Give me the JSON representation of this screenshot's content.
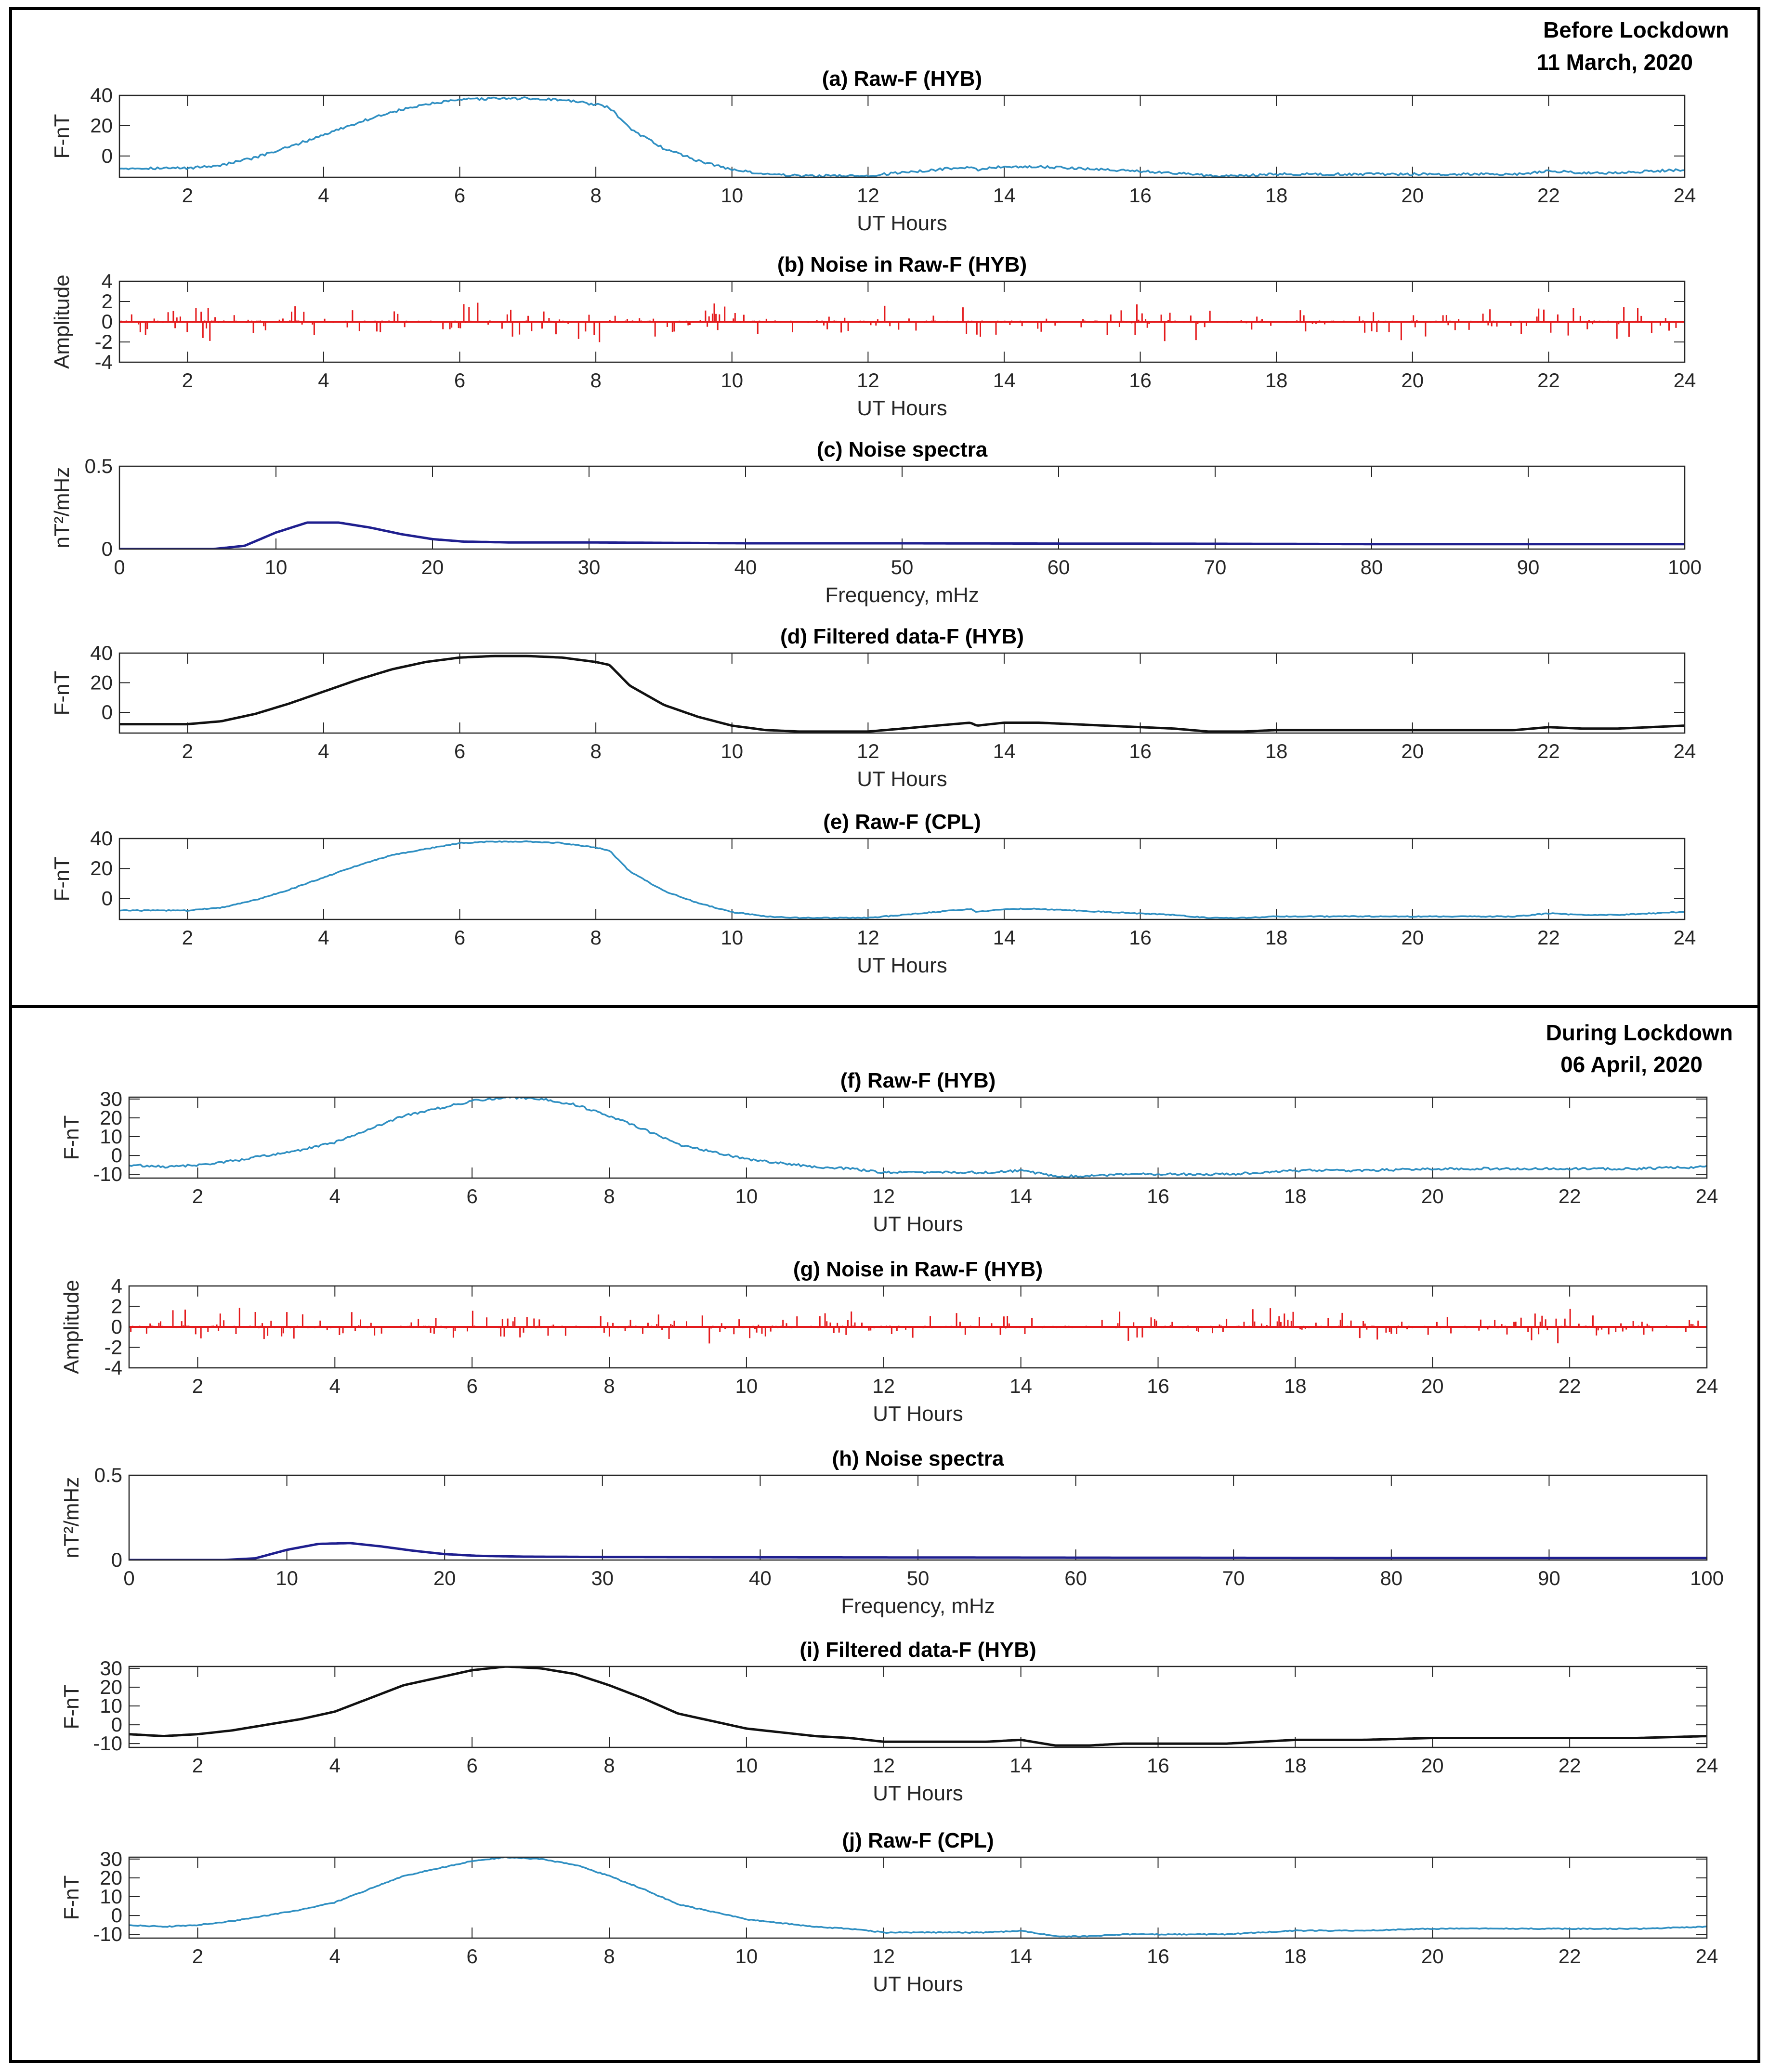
{
  "sections": [
    {
      "heading": "Before Lockdown",
      "date": "11 March, 2020"
    },
    {
      "heading": "During Lockdown",
      "date": "06 April, 2020"
    }
  ],
  "colors": {
    "raw": "#2f8fc2",
    "noise": "#e41a1c",
    "spectra": "#1f1f8f",
    "filtered": "#111111",
    "grid": "#262626"
  },
  "chart_data": [
    {
      "id": "a",
      "type": "line",
      "title": "(a) Raw-F (HYB)",
      "xlabel": "UT Hours",
      "ylabel": "F-nT",
      "xlim": [
        1,
        24
      ],
      "ylim": [
        -14,
        40
      ],
      "xticks": [
        2,
        4,
        6,
        8,
        10,
        12,
        14,
        16,
        18,
        20,
        22,
        24
      ],
      "yticks": [
        0,
        20,
        40
      ],
      "color_key": "raw",
      "noise": 0.8,
      "x": [
        1,
        2,
        2.5,
        3,
        3.5,
        4,
        4.5,
        5,
        5.5,
        6,
        6.5,
        7,
        7.5,
        8,
        8.2,
        8.5,
        9,
        9.5,
        10,
        10.5,
        11,
        11.5,
        12,
        12.5,
        13,
        13.5,
        13.6,
        13.8,
        14,
        14.5,
        15,
        15.5,
        16,
        16.5,
        17,
        17.5,
        18,
        18.5,
        19,
        19.5,
        20,
        20.5,
        21,
        21.5,
        22,
        22.5,
        23,
        23.5,
        24
      ],
      "values": [
        -8,
        -8,
        -6,
        -1,
        6,
        14,
        22,
        29,
        34,
        37,
        38,
        38,
        37,
        34,
        32,
        18,
        5,
        -3,
        -9,
        -12,
        -13,
        -13,
        -13,
        -11,
        -9,
        -7,
        -9,
        -8,
        -7,
        -7,
        -8,
        -9,
        -10,
        -11,
        -13,
        -13,
        -12,
        -12,
        -12,
        -12,
        -12,
        -12,
        -12,
        -12,
        -10,
        -11,
        -11,
        -10,
        -9
      ]
    },
    {
      "id": "b",
      "type": "noise",
      "title": "(b) Noise in Raw-F (HYB)",
      "xlabel": "UT Hours",
      "ylabel": "Amplitude",
      "xlim": [
        1,
        24
      ],
      "ylim": [
        -4,
        4
      ],
      "xticks": [
        2,
        4,
        6,
        8,
        10,
        12,
        14,
        16,
        18,
        20,
        22,
        24
      ],
      "yticks": [
        -4,
        -2,
        0,
        2,
        4
      ],
      "color_key": "noise",
      "amplitude": 2.2,
      "seed": 7
    },
    {
      "id": "c",
      "type": "line",
      "title": "(c) Noise spectra",
      "xlabel": "Frequency, mHz",
      "ylabel": "nT²/mHz",
      "xlim": [
        0,
        100
      ],
      "ylim": [
        0,
        0.5
      ],
      "xticks": [
        0,
        10,
        20,
        30,
        40,
        50,
        60,
        70,
        80,
        90,
        100
      ],
      "yticks": [
        0,
        0.5
      ],
      "color_key": "spectra",
      "noise": 0,
      "stroke": 5,
      "x": [
        0,
        6,
        8,
        10,
        12,
        14,
        16,
        18,
        20,
        22,
        25,
        30,
        40,
        50,
        60,
        70,
        80,
        90,
        100
      ],
      "values": [
        0,
        0,
        0.02,
        0.1,
        0.16,
        0.16,
        0.13,
        0.09,
        0.06,
        0.045,
        0.04,
        0.04,
        0.035,
        0.035,
        0.033,
        0.032,
        0.03,
        0.03,
        0.03
      ]
    },
    {
      "id": "d",
      "type": "line",
      "title": "(d) Filtered data-F (HYB)",
      "xlabel": "UT Hours",
      "ylabel": "F-nT",
      "xlim": [
        1,
        24
      ],
      "ylim": [
        -14,
        40
      ],
      "xticks": [
        2,
        4,
        6,
        8,
        10,
        12,
        14,
        16,
        18,
        20,
        22,
        24
      ],
      "yticks": [
        0,
        20,
        40
      ],
      "color_key": "filtered",
      "noise": 0,
      "stroke": 5,
      "x": [
        1,
        2,
        2.5,
        3,
        3.5,
        4,
        4.5,
        5,
        5.5,
        6,
        6.5,
        7,
        7.5,
        8,
        8.2,
        8.5,
        9,
        9.5,
        10,
        10.5,
        11,
        11.5,
        12,
        12.5,
        13,
        13.5,
        13.6,
        13.8,
        14,
        14.5,
        15,
        15.5,
        16,
        16.5,
        17,
        17.5,
        18,
        18.5,
        19,
        19.5,
        20,
        20.5,
        21,
        21.5,
        22,
        22.5,
        23,
        23.5,
        24
      ],
      "values": [
        -8,
        -8,
        -6,
        -1,
        6,
        14,
        22,
        29,
        34,
        37,
        38,
        38,
        37,
        34,
        32,
        18,
        5,
        -3,
        -9,
        -12,
        -13,
        -13,
        -13,
        -11,
        -9,
        -7,
        -9,
        -8,
        -7,
        -7,
        -8,
        -9,
        -10,
        -11,
        -13,
        -13,
        -12,
        -12,
        -12,
        -12,
        -12,
        -12,
        -12,
        -12,
        -10,
        -11,
        -11,
        -10,
        -9
      ]
    },
    {
      "id": "e",
      "type": "line",
      "title": "(e) Raw-F (CPL)",
      "xlabel": "UT Hours",
      "ylabel": "F-nT",
      "xlim": [
        1,
        24
      ],
      "ylim": [
        -14,
        40
      ],
      "xticks": [
        2,
        4,
        6,
        8,
        10,
        12,
        14,
        16,
        18,
        20,
        22,
        24
      ],
      "yticks": [
        0,
        20,
        40
      ],
      "color_key": "raw",
      "noise": 0.3,
      "x": [
        1,
        2,
        2.5,
        3,
        3.5,
        4,
        4.5,
        5,
        5.5,
        6,
        6.5,
        7,
        7.5,
        8,
        8.2,
        8.5,
        9,
        9.5,
        10,
        10.5,
        11,
        11.5,
        12,
        12.5,
        13,
        13.5,
        13.6,
        13.8,
        14,
        14.5,
        15,
        15.5,
        16,
        16.5,
        17,
        17.5,
        18,
        18.5,
        19,
        19.5,
        20,
        20.5,
        21,
        21.5,
        22,
        22.5,
        23,
        23.5,
        24
      ],
      "values": [
        -8,
        -8,
        -6,
        -1,
        6,
        14,
        22,
        29,
        33,
        37,
        38,
        38,
        37,
        34,
        32,
        18,
        5,
        -3,
        -9,
        -12,
        -13,
        -13,
        -13,
        -11,
        -9,
        -7,
        -9,
        -8,
        -7,
        -7,
        -8,
        -9,
        -10,
        -11,
        -13,
        -13,
        -12,
        -12,
        -12,
        -12,
        -12,
        -12,
        -12,
        -12,
        -10,
        -11,
        -11,
        -10,
        -9
      ]
    },
    {
      "id": "f",
      "type": "line",
      "title": "(f) Raw-F (HYB)",
      "xlabel": "UT Hours",
      "ylabel": "F-nT",
      "xlim": [
        1,
        24
      ],
      "ylim": [
        -12,
        31
      ],
      "xticks": [
        2,
        4,
        6,
        8,
        10,
        12,
        14,
        16,
        18,
        20,
        22,
        24
      ],
      "yticks": [
        -10,
        0,
        10,
        20,
        30
      ],
      "color_key": "raw",
      "noise": 0.6,
      "x": [
        1,
        1.5,
        2,
        2.5,
        3,
        3.5,
        4,
        4.5,
        5,
        5.5,
        6,
        6.5,
        7,
        7.5,
        8,
        8.5,
        9,
        9.5,
        10,
        10.5,
        11,
        11.5,
        12,
        12.5,
        13,
        13.5,
        14,
        14.5,
        15,
        15.5,
        16,
        16.5,
        17,
        17.5,
        18,
        19,
        20,
        21,
        22,
        23,
        24
      ],
      "values": [
        -5,
        -6,
        -5,
        -3,
        0,
        3,
        7,
        14,
        21,
        25,
        29,
        31,
        30,
        27,
        21,
        14,
        6,
        2,
        -2,
        -4,
        -6,
        -7,
        -9,
        -9,
        -9,
        -9,
        -8,
        -11,
        -11,
        -10,
        -10,
        -10,
        -10,
        -9,
        -8,
        -8,
        -7,
        -7,
        -7,
        -7,
        -6
      ]
    },
    {
      "id": "g",
      "type": "noise",
      "title": "(g) Noise in Raw-F (HYB)",
      "xlabel": "UT Hours",
      "ylabel": "Amplitude",
      "xlim": [
        1,
        24
      ],
      "ylim": [
        -4,
        4
      ],
      "xticks": [
        2,
        4,
        6,
        8,
        10,
        12,
        14,
        16,
        18,
        20,
        22,
        24
      ],
      "yticks": [
        -4,
        -2,
        0,
        2,
        4
      ],
      "color_key": "noise",
      "amplitude": 2.0,
      "seed": 13
    },
    {
      "id": "h",
      "type": "line",
      "title": "(h) Noise spectra",
      "xlabel": "Frequency, mHz",
      "ylabel": "nT²/mHz",
      "xlim": [
        0,
        100
      ],
      "ylim": [
        0,
        0.5
      ],
      "xticks": [
        0,
        10,
        20,
        30,
        40,
        50,
        60,
        70,
        80,
        90,
        100
      ],
      "yticks": [
        0,
        0.5
      ],
      "color_key": "spectra",
      "noise": 0,
      "stroke": 5,
      "x": [
        0,
        6,
        8,
        10,
        12,
        14,
        16,
        18,
        20,
        22,
        25,
        30,
        40,
        50,
        60,
        70,
        80,
        90,
        100
      ],
      "values": [
        0,
        0,
        0.01,
        0.06,
        0.095,
        0.1,
        0.08,
        0.055,
        0.035,
        0.025,
        0.02,
        0.018,
        0.016,
        0.015,
        0.014,
        0.013,
        0.012,
        0.012,
        0.012
      ]
    },
    {
      "id": "i",
      "type": "line",
      "title": "(i) Filtered data-F (HYB)",
      "xlabel": "UT Hours",
      "ylabel": "F-nT",
      "xlim": [
        1,
        24
      ],
      "ylim": [
        -12,
        31
      ],
      "xticks": [
        2,
        4,
        6,
        8,
        10,
        12,
        14,
        16,
        18,
        20,
        22,
        24
      ],
      "yticks": [
        -10,
        0,
        10,
        20,
        30
      ],
      "color_key": "filtered",
      "noise": 0,
      "stroke": 5,
      "x": [
        1,
        1.5,
        2,
        2.5,
        3,
        3.5,
        4,
        4.5,
        5,
        5.5,
        6,
        6.5,
        7,
        7.5,
        8,
        8.5,
        9,
        9.5,
        10,
        10.5,
        11,
        11.5,
        12,
        12.5,
        13,
        13.5,
        14,
        14.5,
        15,
        15.5,
        16,
        16.5,
        17,
        17.5,
        18,
        19,
        20,
        21,
        22,
        23,
        24
      ],
      "values": [
        -5,
        -6,
        -5,
        -3,
        0,
        3,
        7,
        14,
        21,
        25,
        29,
        31,
        30,
        27,
        21,
        14,
        6,
        2,
        -2,
        -4,
        -6,
        -7,
        -9,
        -9,
        -9,
        -9,
        -8,
        -11,
        -11,
        -10,
        -10,
        -10,
        -10,
        -9,
        -8,
        -8,
        -7,
        -7,
        -7,
        -7,
        -6
      ]
    },
    {
      "id": "j",
      "type": "line",
      "title": "(j) Raw-F (CPL)",
      "xlabel": "UT Hours",
      "ylabel": "F-nT",
      "xlim": [
        1,
        24
      ],
      "ylim": [
        -12,
        31
      ],
      "xticks": [
        2,
        4,
        6,
        8,
        10,
        12,
        14,
        16,
        18,
        20,
        22,
        24
      ],
      "yticks": [
        -10,
        0,
        10,
        20,
        30
      ],
      "color_key": "raw",
      "noise": 0.25,
      "x": [
        1,
        1.5,
        2,
        2.5,
        3,
        3.5,
        4,
        4.5,
        5,
        5.5,
        6,
        6.5,
        7,
        7.5,
        8,
        8.5,
        9,
        9.5,
        10,
        10.5,
        11,
        11.5,
        12,
        12.5,
        13,
        13.5,
        14,
        14.5,
        15,
        15.5,
        16,
        16.5,
        17,
        17.5,
        18,
        19,
        20,
        21,
        22,
        23,
        24
      ],
      "values": [
        -5,
        -6,
        -5,
        -3,
        0,
        3,
        7,
        14,
        21,
        25,
        29,
        31,
        30,
        27,
        21,
        14,
        6,
        2,
        -2,
        -4,
        -6,
        -7,
        -9,
        -9,
        -9,
        -9,
        -8,
        -11,
        -11,
        -10,
        -10,
        -10,
        -10,
        -9,
        -8,
        -8,
        -7,
        -7,
        -7,
        -7,
        -6
      ]
    }
  ]
}
